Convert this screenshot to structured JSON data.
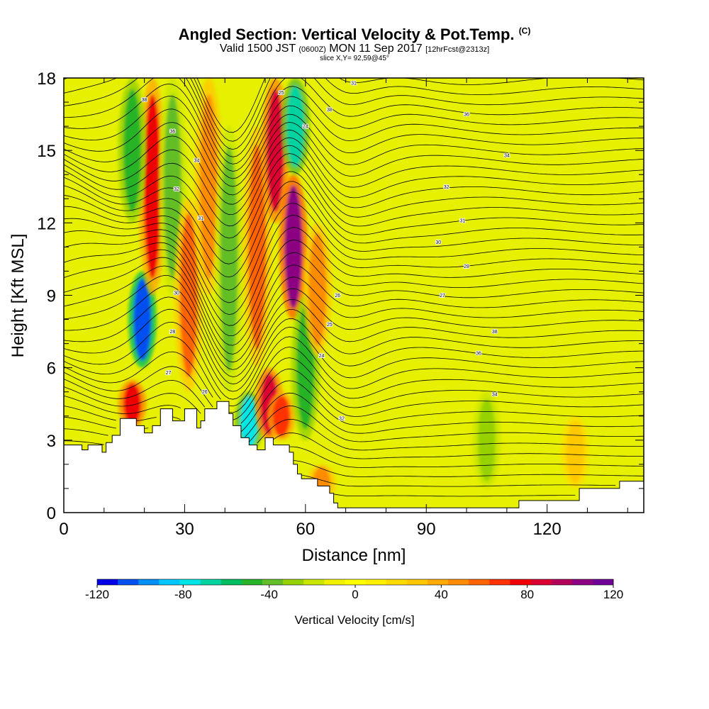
{
  "chart_data": {
    "type": "heatmap",
    "title": "Angled Section: Vertical Velocity & Pot.Temp.",
    "title_mark": "(C)",
    "subtitle_main_a": "Valid 1500 JST ",
    "subtitle_zone": "(0600Z)",
    "subtitle_main_b": " MON 11 Sep 2017 ",
    "subtitle_fcst": "[12hrFcst@2313z]",
    "slice_label": "slice X,Y= 92,59@45°",
    "xlabel": "Distance [nm]",
    "ylabel": "Height [Kft MSL]",
    "xlim": [
      0,
      144
    ],
    "ylim": [
      0,
      18
    ],
    "x_ticks": [
      0,
      30,
      60,
      90,
      120
    ],
    "y_ticks": [
      0,
      3,
      6,
      9,
      12,
      15,
      18
    ],
    "colorbar": {
      "label": "Vertical Velocity [cm/s]",
      "range": [
        -120,
        120
      ],
      "tick_values": [
        -120,
        -80,
        -40,
        0,
        40,
        80,
        120
      ],
      "colors": [
        "#0000e6",
        "#0050f0",
        "#0090f5",
        "#00c8ff",
        "#00e6e6",
        "#00d2a0",
        "#00be60",
        "#28b428",
        "#64be28",
        "#96d200",
        "#c8e600",
        "#f0f000",
        "#ffff00",
        "#fff000",
        "#ffdc00",
        "#ffc800",
        "#ffaa00",
        "#ff8c00",
        "#ff6400",
        "#ff3200",
        "#f00000",
        "#dc0032",
        "#b4005a",
        "#8c0082",
        "#6e0096"
      ]
    },
    "w_features": [
      {
        "x": 17,
        "z0": 3.5,
        "z1": 5.5,
        "w": 80
      },
      {
        "x": 19.5,
        "z0": 6,
        "z1": 10,
        "w": -110
      },
      {
        "x": 22,
        "z0": 9,
        "z1": 18,
        "w": 75
      },
      {
        "x": 17,
        "z0": 12,
        "z1": 18,
        "w": -45
      },
      {
        "x": 27,
        "z0": 9,
        "z1": 18,
        "w": -40
      },
      {
        "x": 31,
        "z0": 5,
        "z1": 13,
        "w": 55
      },
      {
        "x": 36,
        "z0": 9,
        "z1": 18,
        "w": 45
      },
      {
        "x": 41,
        "z0": 5,
        "z1": 16,
        "w": -40
      },
      {
        "x": 46,
        "z0": 2.5,
        "z1": 5,
        "w": -75
      },
      {
        "x": 48,
        "z0": 6,
        "z1": 16,
        "w": 55
      },
      {
        "x": 51,
        "z0": 3,
        "z1": 6,
        "w": 85
      },
      {
        "x": 54,
        "z0": 3,
        "z1": 5,
        "w": 70
      },
      {
        "x": 52.5,
        "z0": 12,
        "z1": 18,
        "w": 85
      },
      {
        "x": 57,
        "z0": 8,
        "z1": 14,
        "w": 105
      },
      {
        "x": 57.5,
        "z0": 14,
        "z1": 18,
        "w": -65
      },
      {
        "x": 60,
        "z0": 3,
        "z1": 9,
        "w": -45
      },
      {
        "x": 63,
        "z0": 6.5,
        "z1": 12,
        "w": 50
      },
      {
        "x": 64,
        "z0": 0.5,
        "z1": 2,
        "w": 45
      },
      {
        "x": 105,
        "z0": 1,
        "z1": 5,
        "w": -30
      },
      {
        "x": 127,
        "z0": 1,
        "z1": 4,
        "w": 30
      }
    ],
    "theta_contours": {
      "base": 296,
      "interval": 1,
      "count": 42
    },
    "contour_labels": [
      "38",
      "36",
      "34",
      "32",
      "31",
      "30",
      "28",
      "27",
      "26",
      "25",
      "24"
    ],
    "terrain_kft": [
      [
        0,
        2.8
      ],
      [
        4.5,
        2.8
      ],
      [
        4.5,
        2.6
      ],
      [
        6,
        2.6
      ],
      [
        6,
        2.8
      ],
      [
        9.5,
        2.8
      ],
      [
        9.5,
        2.5
      ],
      [
        10.5,
        2.5
      ],
      [
        10.5,
        2.9
      ],
      [
        12,
        2.9
      ],
      [
        12,
        3.2
      ],
      [
        14,
        3.2
      ],
      [
        14,
        3.9
      ],
      [
        18,
        3.9
      ],
      [
        18,
        3.6
      ],
      [
        20,
        3.6
      ],
      [
        20,
        3.3
      ],
      [
        22,
        3.3
      ],
      [
        22,
        3.6
      ],
      [
        24,
        3.6
      ],
      [
        24,
        4.3
      ],
      [
        27,
        4.3
      ],
      [
        27,
        3.8
      ],
      [
        30,
        3.8
      ],
      [
        30,
        4.3
      ],
      [
        33,
        4.3
      ],
      [
        33,
        3.5
      ],
      [
        34,
        3.5
      ],
      [
        34,
        3.8
      ],
      [
        35,
        3.8
      ],
      [
        35,
        4.3
      ],
      [
        38,
        4.3
      ],
      [
        38,
        4.6
      ],
      [
        41,
        4.6
      ],
      [
        41,
        4.1
      ],
      [
        42,
        4.1
      ],
      [
        42,
        3.6
      ],
      [
        44,
        3.6
      ],
      [
        44,
        3.1
      ],
      [
        46,
        3.1
      ],
      [
        46,
        2.8
      ],
      [
        48,
        2.8
      ],
      [
        48,
        2.6
      ],
      [
        50,
        2.6
      ],
      [
        50,
        3.1
      ],
      [
        52,
        3.1
      ],
      [
        52,
        2.8
      ],
      [
        56,
        2.8
      ],
      [
        56,
        2.5
      ],
      [
        57,
        2.5
      ],
      [
        57,
        2
      ],
      [
        58,
        2
      ],
      [
        58,
        1.6
      ],
      [
        59,
        1.6
      ],
      [
        59,
        1.4
      ],
      [
        63,
        1.4
      ],
      [
        63,
        1.1
      ],
      [
        66,
        1.1
      ],
      [
        66,
        0.8
      ],
      [
        67,
        0.8
      ],
      [
        67,
        0.4
      ],
      [
        68,
        0.4
      ],
      [
        68,
        0.2
      ],
      [
        113,
        0.2
      ],
      [
        113,
        0.5
      ],
      [
        128,
        0.5
      ],
      [
        128,
        1
      ],
      [
        138,
        1
      ],
      [
        138,
        1.3
      ],
      [
        144,
        1.3
      ]
    ]
  }
}
